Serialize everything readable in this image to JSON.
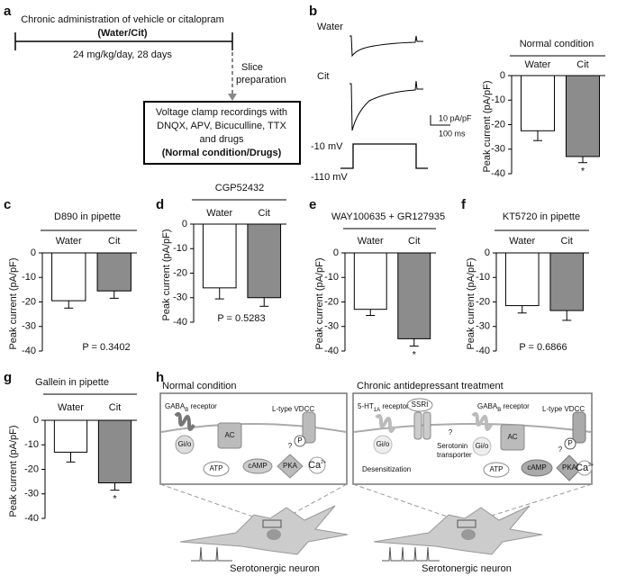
{
  "panel_a": {
    "letter": "a",
    "line1": "Chronic administration of vehicle or citalopram",
    "line2": "(Water/Cit)",
    "dose": "24 mg/kg/day, 28 days",
    "slice": [
      "Slice",
      "preparation"
    ],
    "box": [
      "Voltage clamp recordings with",
      "DNQX, APV, Bicuculline, TTX",
      "and drugs",
      "(Normal condition/Drugs)"
    ]
  },
  "panel_b_traces": {
    "letter": "b",
    "water": "Water",
    "cit": "Cit",
    "scale_current": "10 pA/pF",
    "scale_time": "100 ms",
    "v_step": "-10 mV",
    "v_hold": "-110 mV"
  },
  "panel_h": {
    "letter": "h",
    "normal": {
      "title": "Normal condition",
      "gaba_receptor": [
        "GABA",
        "B",
        " receptor"
      ],
      "vdcc": "L-type VDCC",
      "gio": "Gi/o",
      "ac": "AC",
      "atp": "ATP",
      "camp": "cAMP",
      "pka": "PKA",
      "p": "P",
      "q": "?",
      "ca": [
        "Ca",
        "2+"
      ],
      "neuron": "Serotonergic neuron"
    },
    "chronic": {
      "title": "Chronic antidepressant treatment",
      "ht_receptor": [
        "5-HT",
        "1A",
        " receptor"
      ],
      "ssri": "SSRI",
      "transporter": [
        "Serotonin",
        "transporter"
      ],
      "desensitization": "Desensitization",
      "gaba_receptor": [
        "GABA",
        "B",
        " receptor"
      ],
      "vdcc": "L-type VDCC",
      "gio1": "Gi/o",
      "gio2": "Gi/o",
      "ac": "AC",
      "atp": "ATP",
      "camp": "cAMP",
      "pka": "PKA",
      "p": "P",
      "q1": "?",
      "q2": "?",
      "ca": [
        "Ca",
        "2+"
      ],
      "neuron": "Serotonergic neuron"
    }
  },
  "chart_data": [
    {
      "type": "bar",
      "title": "Normal condition",
      "ylabel": "Peak current (pA/pF)",
      "categories": [
        "Water",
        "Cit"
      ],
      "values": [
        -22.5,
        -33
      ],
      "errors": [
        4,
        2.5
      ],
      "colors": [
        "#ffffff",
        "#8c8c8c"
      ],
      "ylim": [
        -40,
        0
      ],
      "yticks": [
        0,
        -10,
        -20,
        -30,
        -40
      ],
      "annotation": "*"
    },
    {
      "type": "bar",
      "panel": "c",
      "title": "D890 in pipette",
      "ylabel": "Peak current (pA/pF)",
      "categories": [
        "Water",
        "Cit"
      ],
      "values": [
        -19.5,
        -15.5
      ],
      "errors": [
        3,
        3
      ],
      "colors": [
        "#ffffff",
        "#8c8c8c"
      ],
      "ylim": [
        -40,
        0
      ],
      "yticks": [
        0,
        -10,
        -20,
        -30,
        -40
      ],
      "annotation": "P = 0.3402"
    },
    {
      "type": "bar",
      "panel": "d",
      "title": "CGP52432",
      "ylabel": "Peak current (pA/pF)",
      "categories": [
        "Water",
        "Cit"
      ],
      "values": [
        -26,
        -30
      ],
      "errors": [
        4.5,
        3.5
      ],
      "colors": [
        "#ffffff",
        "#8c8c8c"
      ],
      "ylim": [
        -40,
        0
      ],
      "yticks": [
        0,
        -10,
        -20,
        -30,
        -40
      ],
      "annotation": "P = 0.5283"
    },
    {
      "type": "bar",
      "panel": "e",
      "title": "WAY100635 + GR127935",
      "ylabel": "Peak current (pA/pF)",
      "categories": [
        "Water",
        "Cit"
      ],
      "values": [
        -23,
        -35
      ],
      "errors": [
        2.5,
        3
      ],
      "colors": [
        "#ffffff",
        "#8c8c8c"
      ],
      "ylim": [
        -40,
        0
      ],
      "yticks": [
        0,
        -10,
        -20,
        -30,
        -40
      ],
      "annotation": "*"
    },
    {
      "type": "bar",
      "panel": "f",
      "title": "KT5720 in pipette",
      "ylabel": "Peak current (pA/pF)",
      "categories": [
        "Water",
        "Cit"
      ],
      "values": [
        -21.5,
        -23.5
      ],
      "errors": [
        3,
        4
      ],
      "colors": [
        "#ffffff",
        "#8c8c8c"
      ],
      "ylim": [
        -40,
        0
      ],
      "yticks": [
        0,
        -10,
        -20,
        -30,
        -40
      ],
      "annotation": "P = 0.6866"
    },
    {
      "type": "bar",
      "panel": "g",
      "title": "Gallein in pipette",
      "ylabel": "Peak current (pA/pF)",
      "categories": [
        "Water",
        "Cit"
      ],
      "values": [
        -13,
        -25.5
      ],
      "errors": [
        4,
        3
      ],
      "colors": [
        "#ffffff",
        "#8c8c8c"
      ],
      "ylim": [
        -40,
        0
      ],
      "yticks": [
        0,
        -10,
        -20,
        -30,
        -40
      ],
      "annotation": "*"
    }
  ]
}
